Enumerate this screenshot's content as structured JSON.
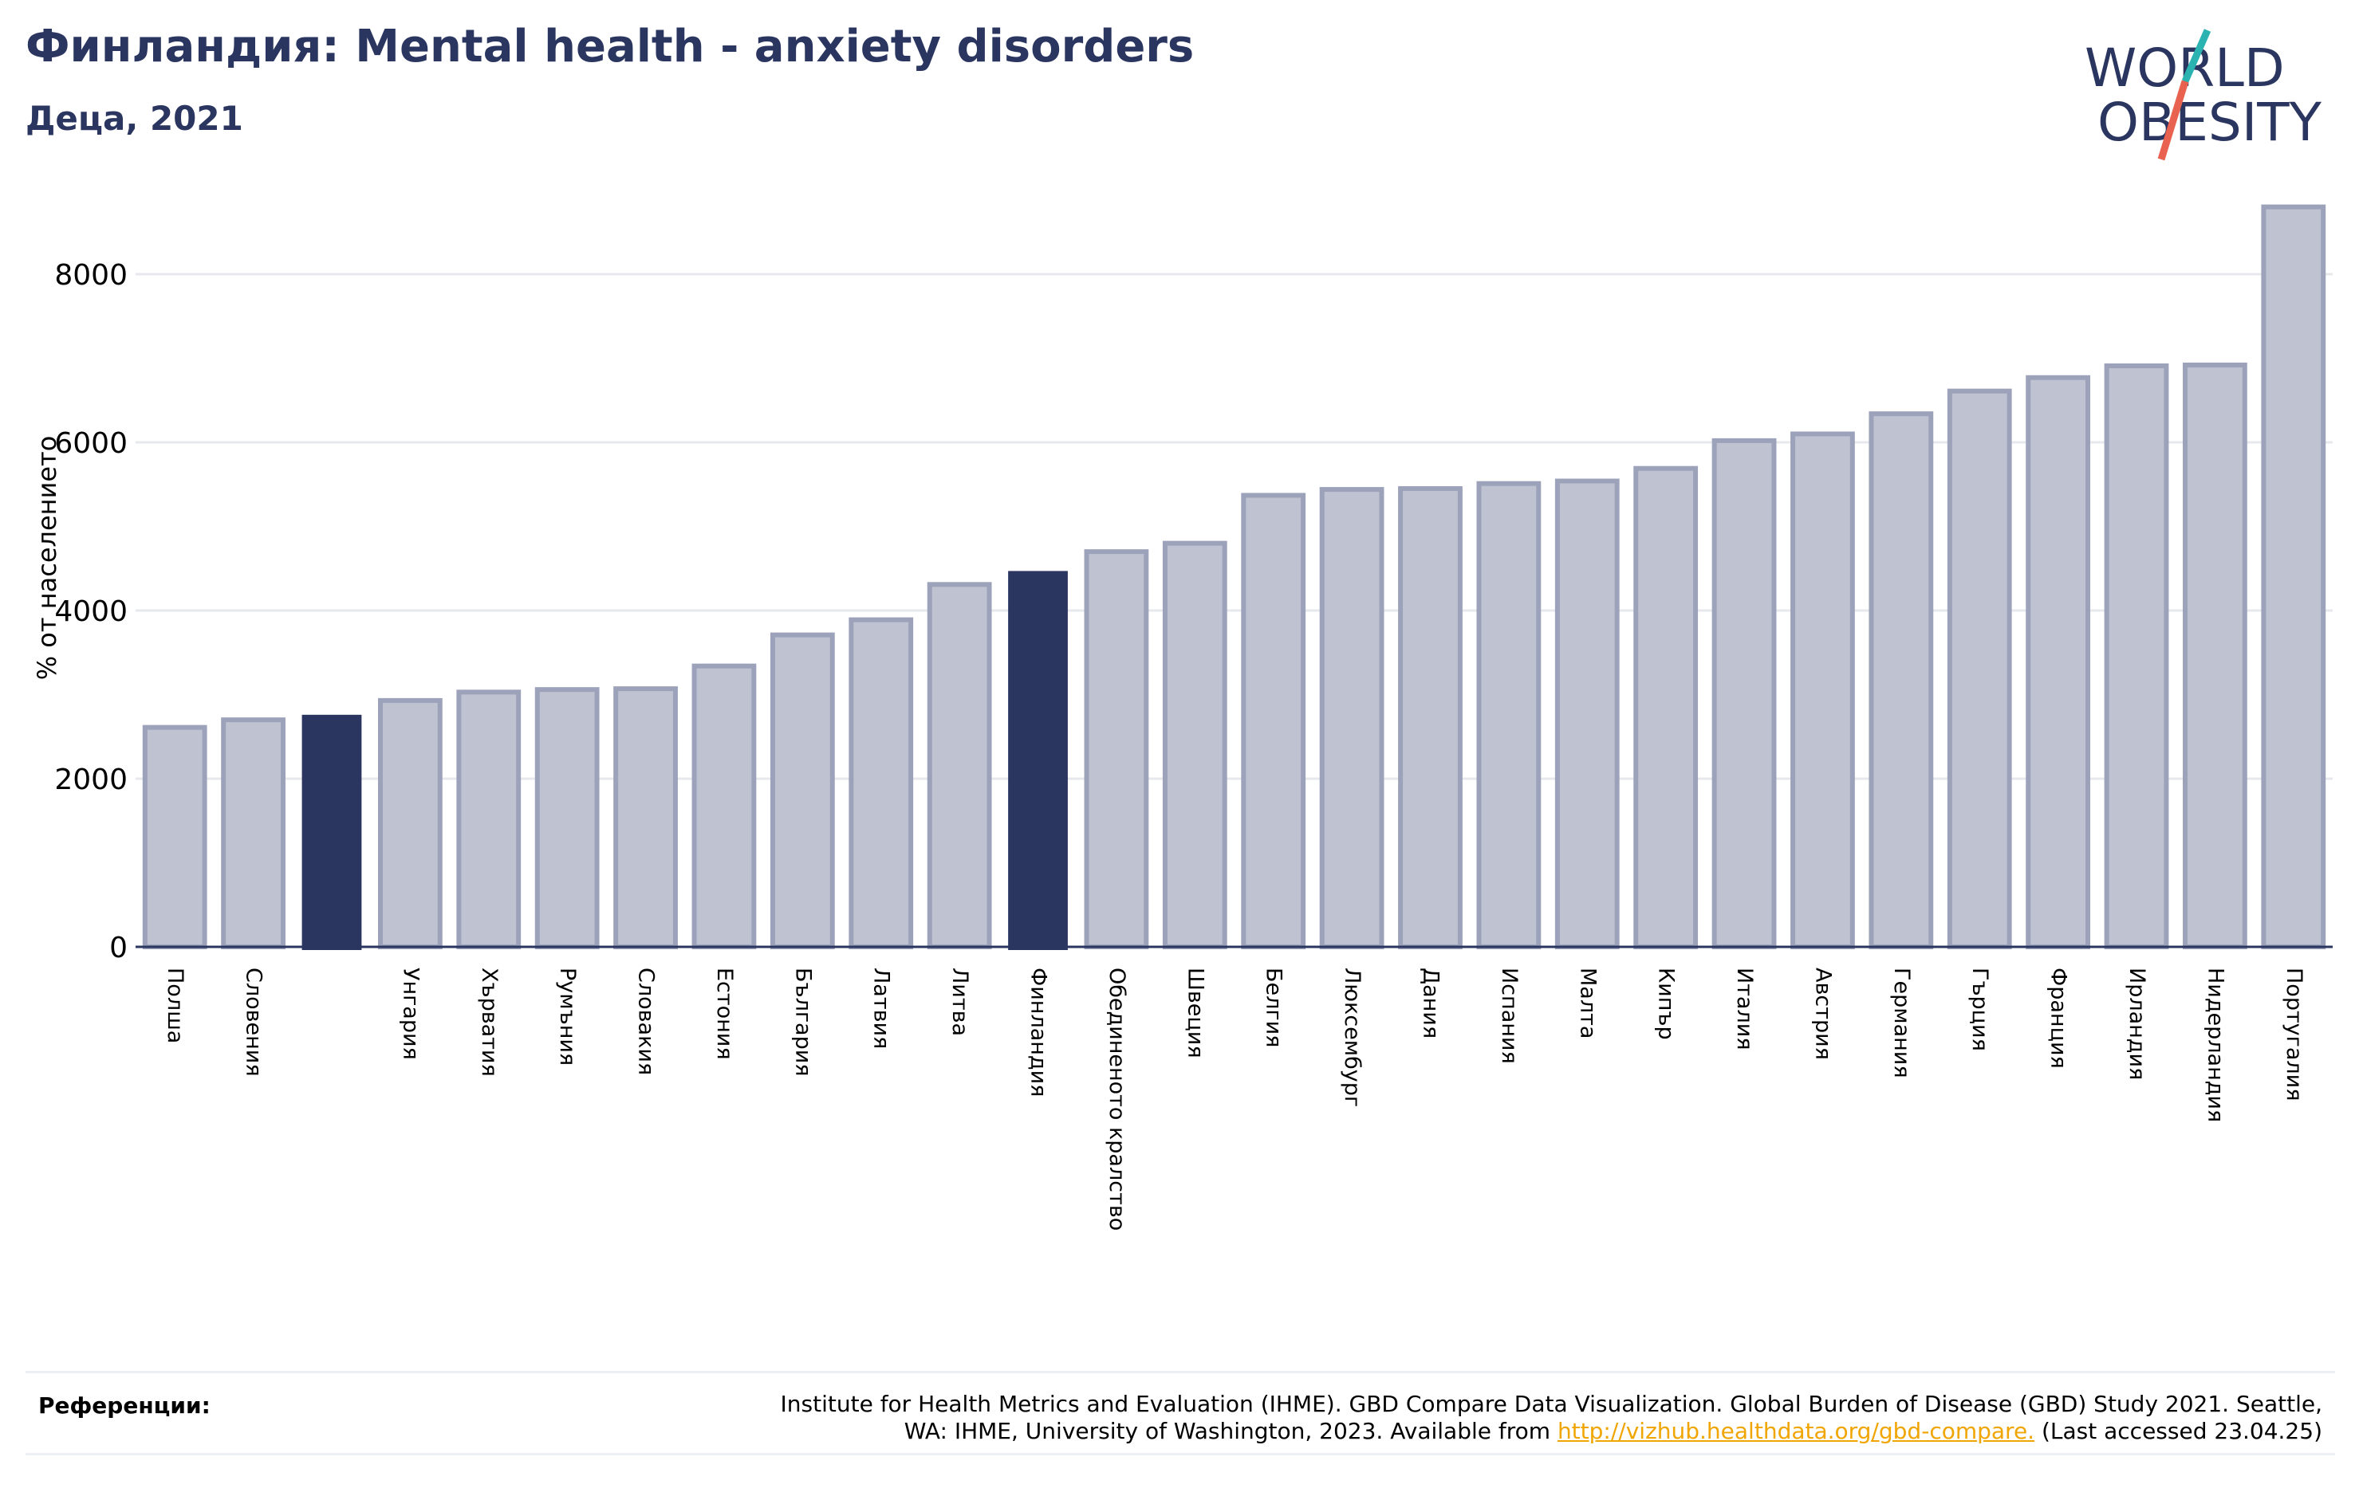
{
  "header": {
    "title": "Финландия: Mental health - anxiety disorders",
    "subtitle": "Деца, 2021"
  },
  "logo": {
    "line1": "WORLD",
    "line2": "OBESITY",
    "text_color": "#2a3560",
    "slash_color_top": "#2bb3b1",
    "slash_color_bottom": "#e8624f"
  },
  "colors": {
    "bar_default_fill": "#bfc3d1",
    "bar_default_stroke": "#9ca2ba",
    "bar_highlight": "#2a3560",
    "grid": "#e6e8ee",
    "axis": "#2a3560"
  },
  "chart_data": {
    "type": "bar",
    "title": "Финландия: Mental health - anxiety disorders",
    "subtitle": "Деца, 2021",
    "ylabel": "% от населението",
    "xlabel": "",
    "ylim": [
      0,
      9000
    ],
    "yticks": [
      0,
      2000,
      4000,
      6000,
      8000
    ],
    "grid": true,
    "categories": [
      "Полша",
      "Словения",
      "",
      "Унгария",
      "Хърватия",
      "Румъния",
      "Словакия",
      "Естония",
      "България",
      "Латвия",
      "Литва",
      "Финландия",
      "Обединеното кралство",
      "Швеция",
      "Белгия",
      "Люксембург",
      "Дания",
      "Испания",
      "Малта",
      "Кипър",
      "Италия",
      "Австрия",
      "Германия",
      "Гърция",
      "Франция",
      "Ирландия",
      "Нидерландия",
      "Португалия"
    ],
    "values": [
      2610,
      2700,
      2760,
      2930,
      3030,
      3060,
      3070,
      3340,
      3710,
      3890,
      4310,
      4470,
      4700,
      4800,
      5370,
      5440,
      5450,
      5510,
      5540,
      5690,
      6020,
      6100,
      6340,
      6610,
      6770,
      6910,
      6920,
      8800
    ],
    "highlighted": [
      2,
      11
    ]
  },
  "references": {
    "label": "Референции:",
    "text_line1": "Institute for Health Metrics and Evaluation (IHME). GBD Compare Data Visualization. Global Burden of Disease (GBD) Study 2021. Seattle,",
    "text_line2_before": "WA: IHME, University of Washington, 2023. Available from ",
    "link": "http://vizhub.healthdata.org/gbd-compare.",
    "text_line2_after": " (Last accessed 23.04.25)"
  }
}
